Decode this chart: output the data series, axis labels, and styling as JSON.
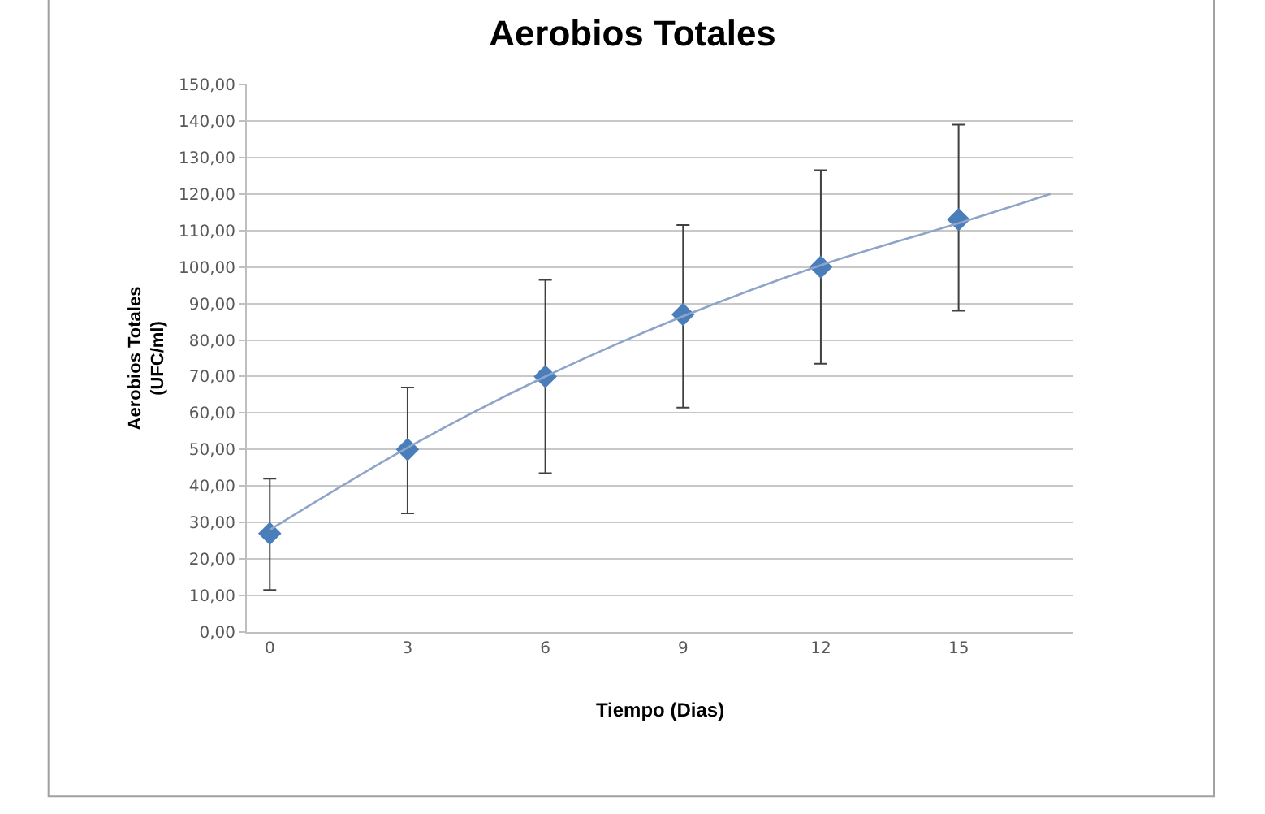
{
  "chart_data": {
    "type": "scatter",
    "title": "Aerobios Totales",
    "xlabel": "Tiempo (Dias)",
    "ylabel": "Aerobios Totales\n(UFC/ml)",
    "xlim": [
      -0.5,
      17.5
    ],
    "xticks": [
      0,
      3,
      6,
      9,
      12,
      15
    ],
    "ylim": [
      0,
      150
    ],
    "yticks": [
      {
        "value": 0,
        "label": "0,00"
      },
      {
        "value": 10,
        "label": "10,00"
      },
      {
        "value": 20,
        "label": "20,00"
      },
      {
        "value": 30,
        "label": "30,00"
      },
      {
        "value": 40,
        "label": "40,00"
      },
      {
        "value": 50,
        "label": "50,00"
      },
      {
        "value": 60,
        "label": "60,00"
      },
      {
        "value": 70,
        "label": "70,00"
      },
      {
        "value": 80,
        "label": "80,00"
      },
      {
        "value": 90,
        "label": "90,00"
      },
      {
        "value": 100,
        "label": "100,00"
      },
      {
        "value": 110,
        "label": "110,00"
      },
      {
        "value": 120,
        "label": "120,00"
      },
      {
        "value": 130,
        "label": "130,00"
      },
      {
        "value": 140,
        "label": "140,00"
      },
      {
        "value": 150,
        "label": "150,00"
      }
    ],
    "grid": "y",
    "series": [
      {
        "color": "#4a7ebb",
        "marker": "diamond",
        "x": [
          0,
          3,
          6,
          9,
          12,
          15
        ],
        "values": [
          27,
          50,
          70,
          87,
          100,
          113
        ],
        "errors": [
          [
            11.5,
            42
          ],
          [
            32.5,
            67
          ],
          [
            43.5,
            96.5
          ],
          [
            61.5,
            111.5
          ],
          [
            73.5,
            126.5
          ],
          [
            88,
            139
          ]
        ]
      },
      {
        "type": "line",
        "color": "#8ea4c8",
        "marker": "none",
        "line_style": "solid",
        "x": [
          0,
          3,
          6,
          9,
          12,
          15,
          17
        ],
        "values": [
          28,
          50.5,
          70,
          86.5,
          100.5,
          112,
          120
        ]
      }
    ]
  }
}
